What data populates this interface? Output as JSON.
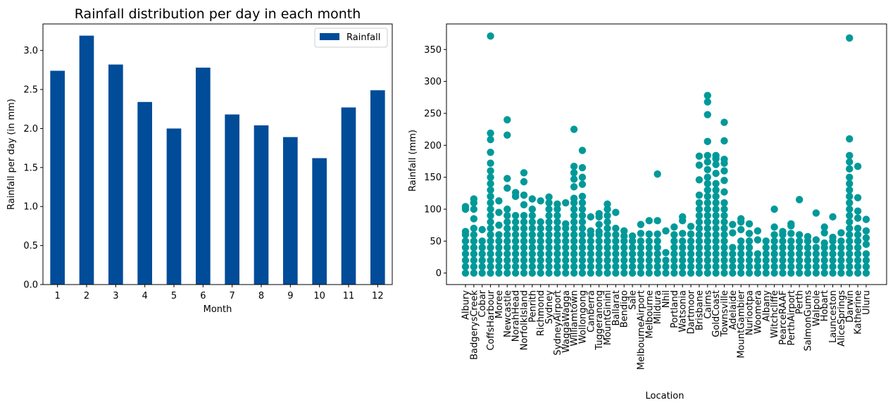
{
  "charts": [
    {
      "type": "bar",
      "title": "Rainfall distribution per day in each month",
      "xlabel": "Month",
      "ylabel": "Rainfall per day (in mm)",
      "legend": {
        "label": "Rainfall",
        "position": "upper-right"
      },
      "ylim": [
        0,
        3.34
      ],
      "yticks": [
        "0.0",
        "0.5",
        "1.0",
        "1.5",
        "2.0",
        "2.5",
        "3.0"
      ],
      "categories": [
        "1",
        "2",
        "3",
        "4",
        "5",
        "6",
        "7",
        "8",
        "9",
        "10",
        "11",
        "12"
      ],
      "values": [
        2.74,
        3.19,
        2.82,
        2.34,
        2.0,
        2.78,
        2.18,
        2.04,
        1.89,
        1.62,
        2.27,
        2.49
      ],
      "color": "#004c99",
      "grid": false
    },
    {
      "type": "scatter",
      "title": "",
      "xlabel": "Location",
      "ylabel": "Rainfall (mm)",
      "ylim": [
        -18,
        390
      ],
      "yticks": [
        "0",
        "50",
        "100",
        "150",
        "200",
        "250",
        "300",
        "350"
      ],
      "color": "#009999",
      "grid": false,
      "series": [
        {
          "location": "Albury",
          "values": [
            0,
            10,
            20,
            30,
            40,
            50,
            60,
            65,
            100,
            104
          ]
        },
        {
          "location": "BadgerysCreek",
          "values": [
            0,
            10,
            20,
            30,
            40,
            50,
            60,
            70,
            85,
            100,
            110,
            116
          ]
        },
        {
          "location": "Cobar",
          "values": [
            0,
            10,
            20,
            30,
            40,
            50,
            68
          ]
        },
        {
          "location": "CoffsHarbour",
          "values": [
            0,
            10,
            20,
            30,
            40,
            50,
            60,
            70,
            80,
            90,
            100,
            110,
            120,
            130,
            140,
            150,
            160,
            172,
            189,
            209,
            219,
            371
          ]
        },
        {
          "location": "Moree",
          "values": [
            0,
            10,
            20,
            30,
            40,
            50,
            60,
            75,
            95,
            113
          ]
        },
        {
          "location": "Newcastle",
          "values": [
            0,
            10,
            20,
            30,
            40,
            50,
            60,
            70,
            80,
            90,
            100,
            133,
            148,
            216,
            240
          ]
        },
        {
          "location": "NorahHead",
          "values": [
            0,
            10,
            20,
            30,
            40,
            50,
            60,
            70,
            80,
            90,
            120,
            126
          ]
        },
        {
          "location": "NorfolkIsland",
          "values": [
            0,
            10,
            20,
            30,
            40,
            50,
            60,
            70,
            80,
            90,
            107,
            122,
            143,
            157
          ]
        },
        {
          "location": "Penrith",
          "values": [
            0,
            10,
            20,
            30,
            40,
            50,
            60,
            70,
            80,
            90,
            100,
            116
          ]
        },
        {
          "location": "Richmond",
          "values": [
            0,
            10,
            20,
            30,
            40,
            50,
            60,
            70,
            80,
            113
          ]
        },
        {
          "location": "Sydney",
          "values": [
            0,
            10,
            20,
            30,
            40,
            50,
            60,
            70,
            80,
            90,
            100,
            110,
            119
          ]
        },
        {
          "location": "SydneyAirport",
          "values": [
            0,
            10,
            20,
            30,
            40,
            50,
            60,
            70,
            80,
            90,
            100,
            108
          ]
        },
        {
          "location": "WaggaWagga",
          "values": [
            0,
            10,
            20,
            30,
            40,
            50,
            60,
            70,
            77,
            110
          ]
        },
        {
          "location": "Williamtown",
          "values": [
            0,
            10,
            20,
            30,
            40,
            50,
            60,
            70,
            80,
            90,
            100,
            110,
            117,
            135,
            147,
            157,
            167,
            225
          ]
        },
        {
          "location": "Wollongong",
          "values": [
            0,
            10,
            20,
            30,
            40,
            50,
            60,
            70,
            80,
            90,
            100,
            110,
            120,
            139,
            150,
            165,
            192
          ]
        },
        {
          "location": "Canberra",
          "values": [
            0,
            10,
            20,
            30,
            40,
            50,
            60,
            66,
            88
          ]
        },
        {
          "location": "Tuggeranong",
          "values": [
            0,
            10,
            20,
            30,
            40,
            50,
            60,
            65,
            76,
            88,
            93
          ]
        },
        {
          "location": "MountGinini",
          "values": [
            0,
            10,
            20,
            30,
            40,
            50,
            60,
            70,
            80,
            90,
            100,
            108
          ]
        },
        {
          "location": "Ballarat",
          "values": [
            0,
            10,
            20,
            30,
            40,
            50,
            60,
            70,
            95
          ]
        },
        {
          "location": "Bendigo",
          "values": [
            0,
            10,
            20,
            30,
            40,
            50,
            58,
            66
          ]
        },
        {
          "location": "Sale",
          "values": [
            0,
            10,
            20,
            30,
            40,
            50,
            58
          ]
        },
        {
          "location": "MelbourneAirport",
          "values": [
            0,
            10,
            20,
            30,
            40,
            50,
            62,
            76
          ]
        },
        {
          "location": "Melbourne",
          "values": [
            0,
            10,
            20,
            30,
            40,
            50,
            61,
            82
          ]
        },
        {
          "location": "Mildura",
          "values": [
            0,
            10,
            20,
            30,
            40,
            50,
            61,
            82,
            155
          ]
        },
        {
          "location": "Nhil",
          "values": [
            0,
            10,
            20,
            32,
            66
          ]
        },
        {
          "location": "Portland",
          "values": [
            0,
            10,
            20,
            30,
            40,
            50,
            60,
            72
          ]
        },
        {
          "location": "Watsonia",
          "values": [
            0,
            10,
            20,
            30,
            40,
            50,
            62,
            82,
            88
          ]
        },
        {
          "location": "Dartmoor",
          "values": [
            0,
            10,
            20,
            30,
            40,
            50,
            61,
            73
          ]
        },
        {
          "location": "Brisbane",
          "values": [
            0,
            10,
            20,
            30,
            40,
            50,
            60,
            70,
            80,
            90,
            100,
            110,
            122,
            146,
            169,
            183
          ]
        },
        {
          "location": "Cairns",
          "values": [
            0,
            10,
            20,
            30,
            40,
            50,
            60,
            70,
            80,
            90,
            100,
            110,
            120,
            130,
            140,
            150,
            162,
            174,
            184,
            206,
            248,
            268,
            278
          ]
        },
        {
          "location": "GoldCoast",
          "values": [
            0,
            10,
            20,
            30,
            40,
            50,
            60,
            70,
            80,
            90,
            100,
            110,
            120,
            130,
            140,
            156,
            170,
            179,
            184
          ]
        },
        {
          "location": "Townsville",
          "values": [
            0,
            10,
            20,
            30,
            40,
            50,
            60,
            70,
            80,
            90,
            100,
            110,
            127,
            145,
            160,
            172,
            178,
            207,
            236
          ]
        },
        {
          "location": "Adelaide",
          "values": [
            0,
            10,
            20,
            30,
            40,
            63,
            76
          ]
        },
        {
          "location": "MountGambier",
          "values": [
            0,
            10,
            20,
            30,
            40,
            50,
            68,
            80,
            85
          ]
        },
        {
          "location": "Nuriootpa",
          "values": [
            0,
            10,
            20,
            30,
            40,
            50,
            62,
            77
          ]
        },
        {
          "location": "Woomera",
          "values": [
            0,
            10,
            20,
            30,
            52,
            66
          ]
        },
        {
          "location": "Albany",
          "values": [
            0,
            10,
            20,
            30,
            40,
            50
          ]
        },
        {
          "location": "Witchcliffe",
          "values": [
            0,
            10,
            20,
            30,
            40,
            50,
            60,
            72,
            100
          ]
        },
        {
          "location": "PearceRAAF",
          "values": [
            0,
            10,
            20,
            30,
            40,
            50,
            60,
            65
          ]
        },
        {
          "location": "PerthAirport",
          "values": [
            0,
            10,
            20,
            30,
            40,
            50,
            62,
            74,
            77
          ]
        },
        {
          "location": "Perth",
          "values": [
            0,
            10,
            20,
            30,
            40,
            50,
            60,
            115
          ]
        },
        {
          "location": "SalmonGums",
          "values": [
            0,
            10,
            20,
            30,
            40,
            50,
            57
          ]
        },
        {
          "location": "Walpole",
          "values": [
            0,
            10,
            20,
            30,
            40,
            52,
            94
          ]
        },
        {
          "location": "Hobart",
          "values": [
            0,
            10,
            20,
            30,
            40,
            47,
            63,
            72
          ]
        },
        {
          "location": "Launceston",
          "values": [
            0,
            10,
            20,
            30,
            40,
            50,
            56,
            88
          ]
        },
        {
          "location": "AliceSprings",
          "values": [
            0,
            10,
            20,
            30,
            40,
            50,
            63
          ]
        },
        {
          "location": "Darwin",
          "values": [
            0,
            10,
            20,
            30,
            40,
            50,
            60,
            70,
            80,
            90,
            100,
            110,
            120,
            130,
            140,
            150,
            163,
            174,
            184,
            210,
            368
          ]
        },
        {
          "location": "Katherine",
          "values": [
            0,
            10,
            20,
            30,
            40,
            50,
            60,
            70,
            86,
            97,
            118,
            167
          ]
        },
        {
          "location": "Uluru",
          "values": [
            0,
            10,
            20,
            30,
            45,
            55,
            66,
            84
          ]
        }
      ]
    }
  ]
}
